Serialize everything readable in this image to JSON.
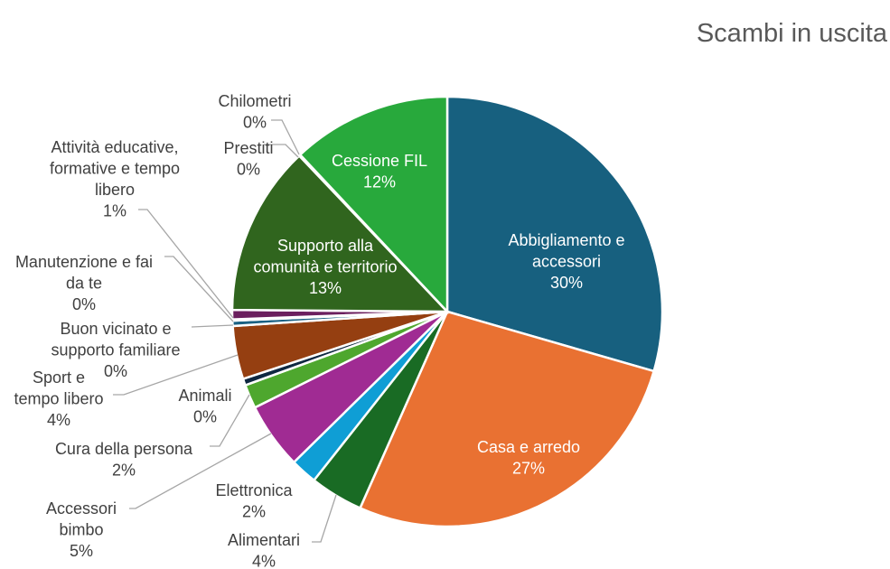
{
  "chart_data": {
    "type": "pie",
    "title": "Scambi in uscita",
    "start_angle_deg": 0,
    "direction": "clockwise",
    "slices": [
      {
        "name": "Abbigliamento e accessori",
        "lines": [
          "Abbigliamento e",
          "accessori",
          "30%"
        ],
        "value": 29.5,
        "color": "#17607f",
        "inside": true
      },
      {
        "name": "Casa e arredo",
        "lines": [
          "Casa e arredo",
          "27%"
        ],
        "value": 27.2,
        "color": "#e97132",
        "inside": true
      },
      {
        "name": "Alimentari",
        "lines": [
          "Alimentari",
          "4%"
        ],
        "value": 4.0,
        "color": "#196b24",
        "inside": false
      },
      {
        "name": "Elettronica",
        "lines": [
          "Elettronica",
          "2%"
        ],
        "value": 2.0,
        "color": "#0f9ed5",
        "inside": false
      },
      {
        "name": "Accessori bimbo",
        "lines": [
          "Accessori",
          "bimbo",
          "5%"
        ],
        "value": 5.0,
        "color": "#a02b93",
        "inside": false
      },
      {
        "name": "Cura della persona",
        "lines": [
          "Cura della persona",
          "2%"
        ],
        "value": 1.8,
        "color": "#4ea72e",
        "inside": false
      },
      {
        "name": "Animali",
        "lines": [
          "Animali",
          "0%"
        ],
        "value": 0.5,
        "color": "#0e2841",
        "inside": false
      },
      {
        "name": "Sport e tempo libero",
        "lines": [
          "Sport e",
          "tempo libero",
          "4%"
        ],
        "value": 4.0,
        "color": "#953f11",
        "inside": false
      },
      {
        "name": "Buon vicinato e supporto familiare",
        "lines": [
          "Buon vicinato e",
          "supporto familiare",
          "0%"
        ],
        "value": 0.4,
        "color": "#1a6183",
        "inside": false
      },
      {
        "name": "Manutenzione e fai da te",
        "lines": [
          "Manutenzione e fai",
          "da te",
          "0%"
        ],
        "value": 0.1,
        "color": "#7a2070",
        "inside": false
      },
      {
        "name": "Attività educative, formative e tempo libero",
        "lines": [
          "Attività educative,",
          "formative e tempo",
          "libero",
          "1%"
        ],
        "value": 0.7,
        "color": "#6b1f5e",
        "inside": false
      },
      {
        "name": "Supporto alla comunità e territorio",
        "lines": [
          "Supporto alla",
          "comunità e territorio",
          "13%"
        ],
        "value": 12.8,
        "color": "#30651e",
        "inside": true
      },
      {
        "name": "Prestiti",
        "lines": [
          "Prestiti",
          "0%"
        ],
        "value": 0.05,
        "color": "#2a7d3a",
        "inside": false
      },
      {
        "name": "Chilometri",
        "lines": [
          "Chilometri",
          "0%"
        ],
        "value": 0.05,
        "color": "#1f8a4a",
        "inside": false
      },
      {
        "name": "Cessione FIL",
        "lines": [
          "Cessione FIL",
          "12%"
        ],
        "value": 12.0,
        "color": "#28a93c",
        "inside": true
      }
    ]
  }
}
